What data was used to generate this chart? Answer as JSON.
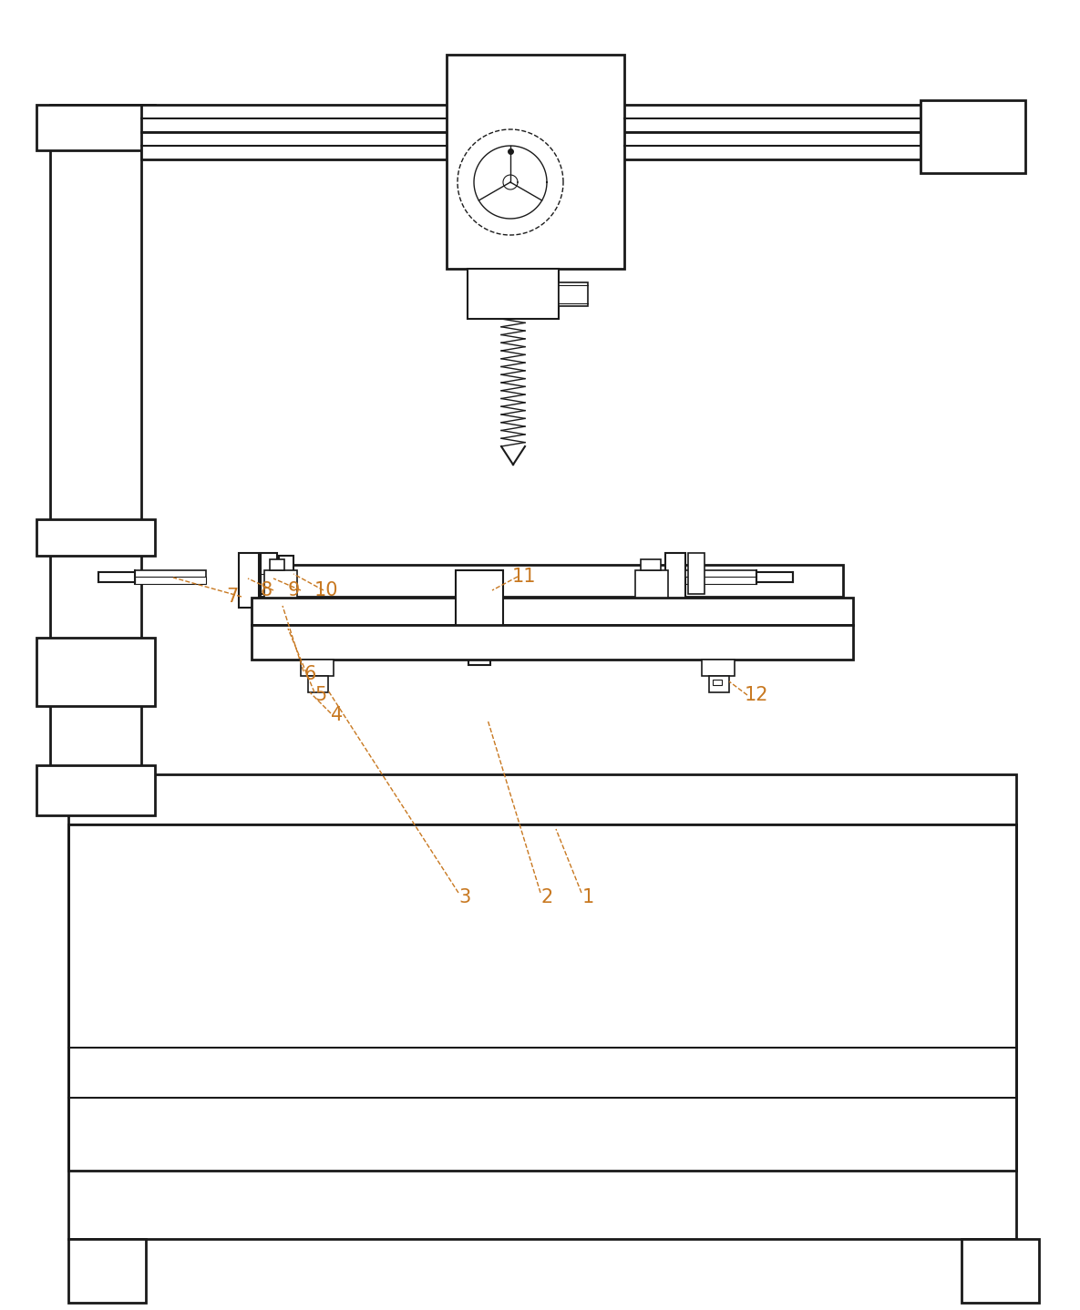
{
  "bg_color": "#ffffff",
  "line_color": "#1a1a1a",
  "label_color": "#c87820",
  "fig_width": 11.85,
  "fig_height": 14.38,
  "dpi": 100
}
